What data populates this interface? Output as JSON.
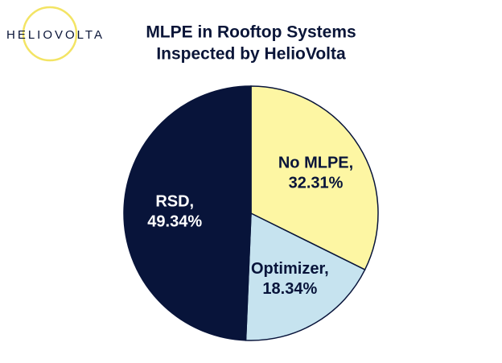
{
  "logo": "HELIOVOLTA",
  "chart_data": {
    "type": "pie",
    "title": [
      "MLPE in Rooftop Systems",
      "Inspected by HelioVolta"
    ],
    "categories": [
      "No MLPE,",
      "Optimizer,",
      "RSD,"
    ],
    "values": [
      32.31,
      18.34,
      49.34
    ],
    "value_labels": [
      "32.31%",
      "18.34%",
      "49.34%"
    ],
    "colors": [
      "#fdf6a3",
      "#c6e3ef",
      "#08143a"
    ]
  }
}
